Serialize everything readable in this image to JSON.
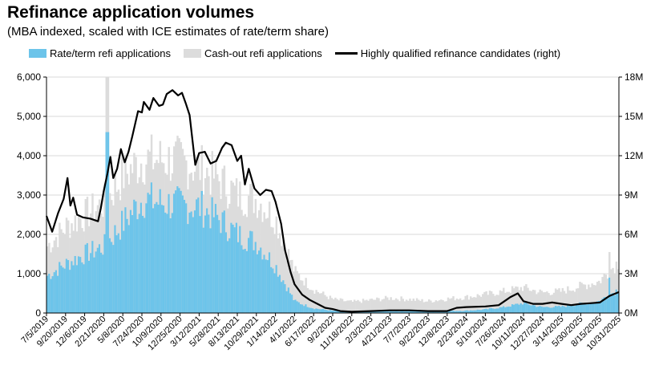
{
  "chart_data": {
    "type": "area",
    "title": "Refinance application volumes",
    "subtitle": "(MBA indexed, scaled with ICE estimates of rate/term share)",
    "legend": [
      {
        "label": "Rate/term refi applications",
        "color": "#6CC4EA",
        "kind": "area"
      },
      {
        "label": "Cash-out refi applications",
        "color": "#DCDCDC",
        "kind": "area"
      },
      {
        "label": "Highly qualified refinance candidates (right)",
        "color": "#000000",
        "kind": "line"
      }
    ],
    "y_left": {
      "min": 0,
      "max": 6000,
      "ticks": [
        "0",
        "1,000",
        "2,000",
        "3,000",
        "4,000",
        "5,000",
        "6,000"
      ]
    },
    "y_right": {
      "min": 0,
      "max": 18,
      "ticks": [
        "0M",
        "3M",
        "6M",
        "9M",
        "12M",
        "15M",
        "18M"
      ]
    },
    "x_ticks": [
      "7/5/2019",
      "9/20/2019",
      "12/6/2019",
      "2/21/2020",
      "5/8/2020",
      "7/24/2020",
      "10/9/2020",
      "12/25/2020",
      "3/12/2021",
      "5/28/2021",
      "8/13/2021",
      "10/29/2021",
      "1/14/2022",
      "4/1/2022",
      "6/17/2022",
      "9/2/2022",
      "11/18/2022",
      "2/3/2023",
      "4/21/2023",
      "7/7/2023",
      "9/22/2023",
      "12/8/2023",
      "2/23/2024",
      "5/10/2024",
      "7/26/2024",
      "10/11/2024",
      "12/27/2024",
      "3/14/2025",
      "5/30/2025",
      "8/15/2025",
      "10/31/2025"
    ],
    "series": [
      {
        "name": "Rate/term refi applications",
        "knots": [
          [
            0,
            950
          ],
          [
            1,
            1250
          ],
          [
            2,
            1500
          ],
          [
            3,
            1700
          ],
          [
            4,
            2300
          ],
          [
            5,
            2900
          ],
          [
            6,
            2800
          ],
          [
            7,
            2750
          ],
          [
            8,
            2700
          ],
          [
            9,
            2400
          ],
          [
            10,
            2000
          ],
          [
            11,
            1800
          ],
          [
            12,
            1200
          ],
          [
            13,
            300
          ],
          [
            14,
            120
          ],
          [
            15,
            60
          ],
          [
            16,
            30
          ],
          [
            17,
            40
          ],
          [
            18,
            50
          ],
          [
            19,
            50
          ],
          [
            20,
            40
          ],
          [
            21,
            50
          ],
          [
            22,
            60
          ],
          [
            23,
            90
          ],
          [
            24,
            150
          ],
          [
            25,
            250
          ],
          [
            26,
            150
          ],
          [
            27,
            160
          ],
          [
            28,
            230
          ],
          [
            29,
            300
          ],
          [
            30,
            600
          ]
        ]
      },
      {
        "name": "Cash-out refi applications (total top)",
        "knots": [
          [
            0,
            1700
          ],
          [
            1,
            2200
          ],
          [
            2,
            2500
          ],
          [
            3,
            2800
          ],
          [
            4,
            3500
          ],
          [
            5,
            3900
          ],
          [
            6,
            3900
          ],
          [
            7,
            3850
          ],
          [
            8,
            3700
          ],
          [
            9,
            3400
          ],
          [
            10,
            3000
          ],
          [
            11,
            2900
          ],
          [
            12,
            2400
          ],
          [
            13,
            1050
          ],
          [
            14,
            600
          ],
          [
            15,
            350
          ],
          [
            16,
            280
          ],
          [
            17,
            330
          ],
          [
            18,
            380
          ],
          [
            19,
            350
          ],
          [
            20,
            300
          ],
          [
            21,
            360
          ],
          [
            22,
            400
          ],
          [
            23,
            470
          ],
          [
            24,
            550
          ],
          [
            25,
            650
          ],
          [
            26,
            520
          ],
          [
            27,
            550
          ],
          [
            28,
            680
          ],
          [
            29,
            800
          ],
          [
            30,
            1300
          ]
        ]
      },
      {
        "name": "Highly qualified refinance candidates (right)",
        "unit": "M",
        "knots": [
          [
            0,
            7.4
          ],
          [
            0.3,
            6.2
          ],
          [
            0.6,
            7.6
          ],
          [
            0.9,
            8.7
          ],
          [
            1.1,
            10.3
          ],
          [
            1.25,
            8.2
          ],
          [
            1.4,
            8.8
          ],
          [
            1.6,
            7.5
          ],
          [
            1.9,
            7.3
          ],
          [
            2.3,
            7.2
          ],
          [
            2.7,
            7.0
          ],
          [
            2.85,
            8.0
          ],
          [
            3.0,
            9.3
          ],
          [
            3.2,
            10.7
          ],
          [
            3.35,
            11.9
          ],
          [
            3.5,
            10.3
          ],
          [
            3.7,
            11.0
          ],
          [
            3.9,
            12.5
          ],
          [
            4.1,
            11.5
          ],
          [
            4.3,
            12.3
          ],
          [
            4.5,
            13.5
          ],
          [
            4.8,
            15.4
          ],
          [
            5.0,
            15.3
          ],
          [
            5.1,
            16.1
          ],
          [
            5.4,
            15.5
          ],
          [
            5.6,
            16.4
          ],
          [
            5.9,
            15.8
          ],
          [
            6.1,
            15.9
          ],
          [
            6.3,
            16.7
          ],
          [
            6.6,
            17.0
          ],
          [
            6.9,
            16.6
          ],
          [
            7.1,
            16.8
          ],
          [
            7.3,
            16.0
          ],
          [
            7.5,
            15.1
          ],
          [
            7.8,
            11.3
          ],
          [
            8.0,
            12.2
          ],
          [
            8.3,
            12.3
          ],
          [
            8.6,
            11.4
          ],
          [
            8.9,
            11.6
          ],
          [
            9.2,
            12.6
          ],
          [
            9.4,
            13.0
          ],
          [
            9.7,
            12.8
          ],
          [
            10.0,
            11.6
          ],
          [
            10.2,
            12.0
          ],
          [
            10.4,
            9.8
          ],
          [
            10.6,
            11.0
          ],
          [
            10.9,
            9.5
          ],
          [
            11.2,
            9.0
          ],
          [
            11.5,
            9.4
          ],
          [
            11.8,
            9.3
          ],
          [
            12.0,
            8.5
          ],
          [
            12.3,
            6.8
          ],
          [
            12.5,
            4.8
          ],
          [
            12.8,
            3.1
          ],
          [
            13.0,
            2.2
          ],
          [
            13.4,
            1.4
          ],
          [
            13.8,
            1.0
          ],
          [
            14.2,
            0.7
          ],
          [
            14.6,
            0.4
          ],
          [
            15.0,
            0.3
          ],
          [
            15.4,
            0.15
          ],
          [
            16.0,
            0.1
          ],
          [
            17.0,
            0.15
          ],
          [
            18.0,
            0.2
          ],
          [
            19.0,
            0.2
          ],
          [
            20.0,
            0.15
          ],
          [
            21.0,
            0.15
          ],
          [
            21.5,
            0.4
          ],
          [
            22.0,
            0.45
          ],
          [
            23.0,
            0.5
          ],
          [
            23.7,
            0.6
          ],
          [
            24.3,
            1.2
          ],
          [
            24.7,
            1.5
          ],
          [
            25.0,
            0.9
          ],
          [
            25.5,
            0.7
          ],
          [
            26.0,
            0.7
          ],
          [
            26.5,
            0.8
          ],
          [
            27.0,
            0.7
          ],
          [
            27.5,
            0.6
          ],
          [
            28.0,
            0.7
          ],
          [
            28.5,
            0.75
          ],
          [
            29.0,
            0.8
          ],
          [
            29.5,
            1.3
          ],
          [
            30.0,
            1.6
          ]
        ]
      }
    ]
  }
}
